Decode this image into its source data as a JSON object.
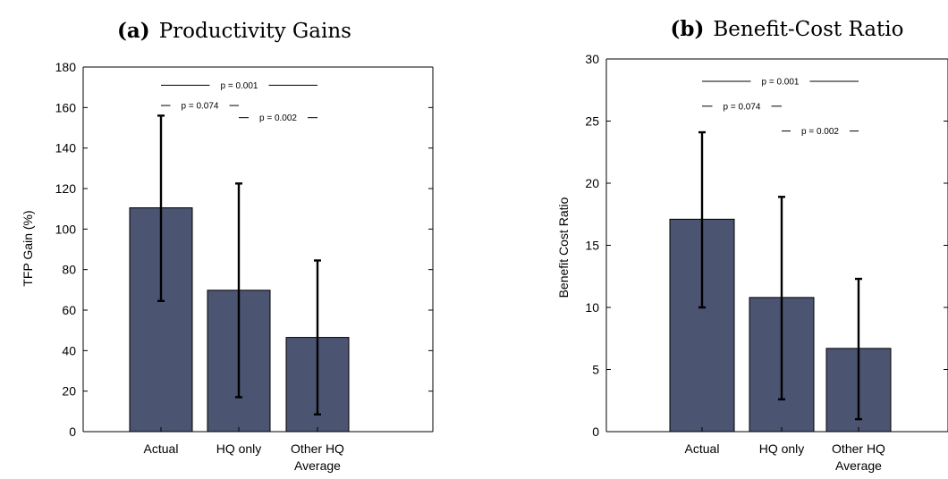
{
  "chart_data": [
    {
      "type": "bar",
      "title_prefix": "(a)",
      "title": "Productivity Gains",
      "xlabel": "",
      "ylabel": "TFP Gain (%)",
      "categories": [
        [
          "Actual"
        ],
        [
          "HQ only"
        ],
        [
          "Other HQ",
          "Average"
        ]
      ],
      "values": [
        110.5,
        69.8,
        46.5
      ],
      "error_low": [
        64.5,
        17.0,
        8.5
      ],
      "error_high": [
        156.0,
        122.5,
        84.5
      ],
      "ylim": [
        0,
        180
      ],
      "yticks": [
        0,
        20,
        40,
        60,
        80,
        100,
        120,
        140,
        160,
        180
      ],
      "bar_color": "#4b5470",
      "grid": false,
      "significance": [
        {
          "from": 0,
          "to": 2,
          "label": "p = 0.001",
          "y": 171
        },
        {
          "from": 0,
          "to": 1,
          "label": "p = 0.074",
          "y": 161
        },
        {
          "from": 1,
          "to": 2,
          "label": "p = 0.002",
          "y": 155
        }
      ]
    },
    {
      "type": "bar",
      "title_prefix": "(b)",
      "title": "Benefit-Cost Ratio",
      "xlabel": "",
      "ylabel": "Benefit Cost Ratio",
      "categories": [
        [
          "Actual"
        ],
        [
          "HQ only"
        ],
        [
          "Other HQ",
          "Average"
        ]
      ],
      "values": [
        17.1,
        10.8,
        6.7
      ],
      "error_low": [
        10.0,
        2.6,
        1.0
      ],
      "error_high": [
        24.1,
        18.9,
        12.3
      ],
      "ylim": [
        0,
        30
      ],
      "yticks": [
        0,
        5,
        10,
        15,
        20,
        25,
        30
      ],
      "bar_color": "#4b5470",
      "grid": false,
      "significance": [
        {
          "from": 0,
          "to": 2,
          "label": "p = 0.001",
          "y": 28.2
        },
        {
          "from": 0,
          "to": 1,
          "label": "p = 0.074",
          "y": 26.2
        },
        {
          "from": 1,
          "to": 2,
          "label": "p = 0.002",
          "y": 24.2
        }
      ]
    }
  ]
}
